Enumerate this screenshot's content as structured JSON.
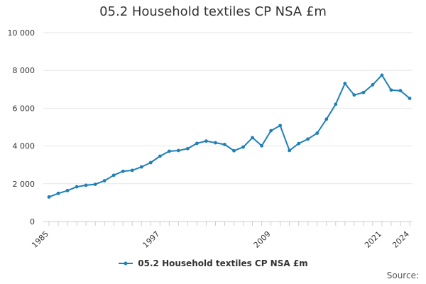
{
  "colors": {
    "series": "#1f7fb8",
    "grid": "#e6e6e6",
    "axis": "#cccccc"
  },
  "legend": {
    "label": "05.2 Household textiles CP NSA £m"
  },
  "source_label": "Source:",
  "chart_data": {
    "type": "line",
    "title": "05.2 Household textiles CP NSA £m",
    "xlabel": "",
    "ylabel": "",
    "x_tick_labels": [
      "1985",
      "1997",
      "2009",
      "2021",
      "2024"
    ],
    "y_tick_labels": [
      "0",
      "2 000",
      "4 000",
      "6 000",
      "8 000",
      "10 000"
    ],
    "ylim": [
      0,
      10000
    ],
    "xlim": [
      1985,
      2024
    ],
    "grid": true,
    "legend_position": "bottom",
    "series": [
      {
        "name": "05.2 Household textiles CP NSA £m",
        "x": [
          1985,
          1986,
          1987,
          1988,
          1989,
          1990,
          1991,
          1992,
          1993,
          1994,
          1995,
          1996,
          1997,
          1998,
          1999,
          2000,
          2001,
          2002,
          2003,
          2004,
          2005,
          2006,
          2007,
          2008,
          2009,
          2010,
          2011,
          2012,
          2013,
          2014,
          2015,
          2016,
          2017,
          2018,
          2019,
          2020,
          2021,
          2022,
          2023,
          2024
        ],
        "values": [
          1300,
          1490,
          1640,
          1840,
          1920,
          1970,
          2160,
          2450,
          2660,
          2710,
          2890,
          3120,
          3460,
          3720,
          3760,
          3860,
          4140,
          4260,
          4170,
          4080,
          3750,
          3940,
          4440,
          4010,
          4810,
          5080,
          3760,
          4130,
          4370,
          4680,
          5420,
          6210,
          7310,
          6700,
          6830,
          7240,
          7750,
          6960,
          6930,
          6520
        ]
      }
    ]
  }
}
